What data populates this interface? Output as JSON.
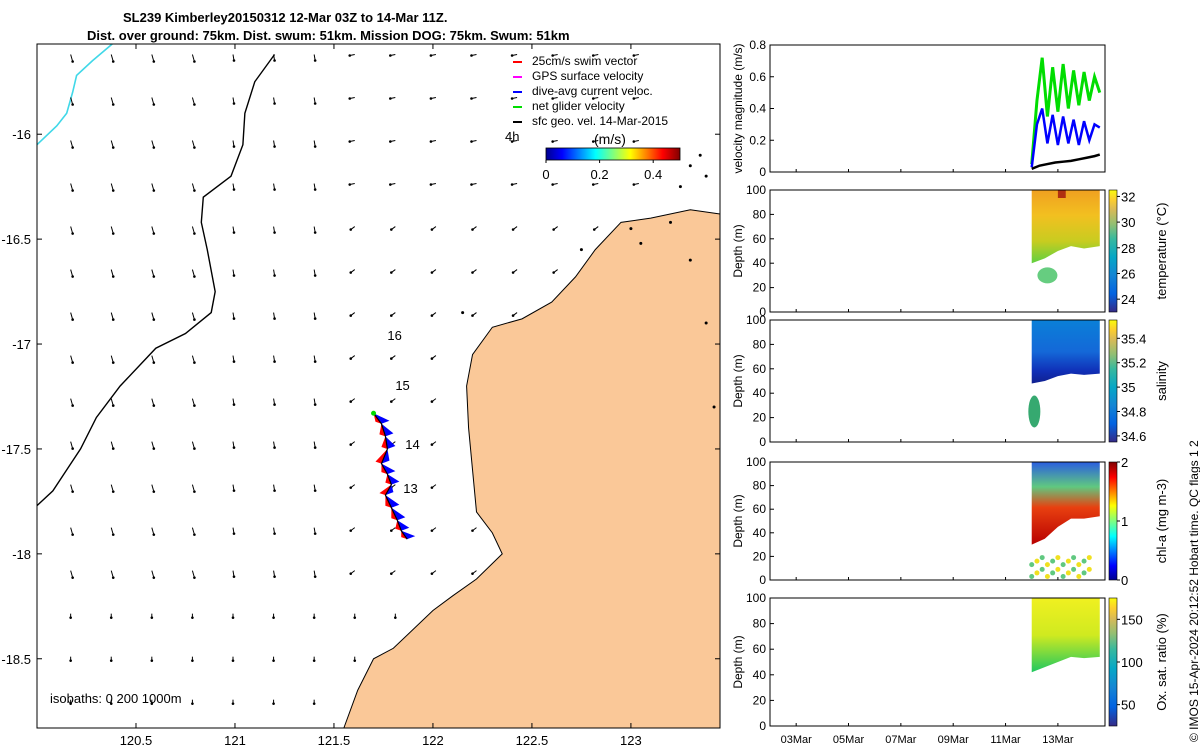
{
  "title": {
    "line1": "SL239 Kimberley20150312 12-Mar 03Z to 14-Mar 11Z.",
    "line2": "Dist. over ground: 75km. Dist. swum: 51km. Mission DOG: 75km. Swum: 51km"
  },
  "legend": {
    "items": [
      {
        "label": "25cm/s swim vector",
        "color": "#ff0000"
      },
      {
        "label": "GPS surface velocity",
        "color": "#ff00ff"
      },
      {
        "label": "dive-avg current veloc.",
        "color": "#0000ff"
      },
      {
        "label": "net glider velocity",
        "color": "#00dd00"
      },
      {
        "label": "sfc geo. vel. 14-Mar-2015",
        "color": "#000000"
      }
    ],
    "time_marker": "4h"
  },
  "colors": {
    "land": "#fac898",
    "isobath_200": "#000000",
    "isobath_1000": "#40d8e8",
    "glider_track": "#0000ff",
    "swim": "#ff0000"
  },
  "isobaths_label": "isobaths: 0   200  1000m",
  "side_caption": "© IMOS 15-Apr-2024 20:12:52 Hobart time. QC flags 1  2",
  "chart_data": [
    {
      "type": "map",
      "title": "SL239 Kimberley20150312 12-Mar 03Z to 14-Mar 11Z.",
      "xlim": [
        120.0,
        123.45
      ],
      "ylim": [
        -18.83,
        -15.57
      ],
      "x_ticks": [
        120.5,
        121,
        121.5,
        122,
        122.5,
        123
      ],
      "x_tick_labels": [
        "120.5",
        "121",
        "121.5",
        "122",
        "122.5",
        "123"
      ],
      "y_ticks": [
        -16,
        -16.5,
        -17,
        -17.5,
        -18,
        -18.5
      ],
      "y_tick_labels": [
        "-16",
        "-16.5",
        "-17",
        "-17.5",
        "-18",
        "-18.5"
      ],
      "colorbar": {
        "label": "(m/s)",
        "ticks": [
          0,
          0.2,
          0.4
        ],
        "tick_labels": [
          "0",
          "0.2",
          "0.4"
        ],
        "range": [
          0,
          0.5
        ]
      },
      "day_labels": [
        {
          "text": "16",
          "lon": 121.77,
          "lat": -16.98
        },
        {
          "text": "15",
          "lon": 121.81,
          "lat": -17.22
        },
        {
          "text": "14",
          "lon": 121.86,
          "lat": -17.5
        },
        {
          "text": "13",
          "lon": 121.85,
          "lat": -17.71
        }
      ],
      "glider_track": [
        [
          121.7,
          -17.33
        ],
        [
          121.74,
          -17.38
        ],
        [
          121.76,
          -17.44
        ],
        [
          121.77,
          -17.5
        ],
        [
          121.74,
          -17.57
        ],
        [
          121.77,
          -17.62
        ],
        [
          121.79,
          -17.67
        ],
        [
          121.76,
          -17.72
        ],
        [
          121.79,
          -17.78
        ],
        [
          121.82,
          -17.84
        ],
        [
          121.84,
          -17.89
        ],
        [
          121.87,
          -17.93
        ]
      ],
      "coastline": [
        [
          123.45,
          -16.38
        ],
        [
          123.3,
          -16.36
        ],
        [
          123.1,
          -16.4
        ],
        [
          122.95,
          -16.42
        ],
        [
          122.82,
          -16.55
        ],
        [
          122.72,
          -16.68
        ],
        [
          122.6,
          -16.8
        ],
        [
          122.45,
          -16.88
        ],
        [
          122.3,
          -16.92
        ],
        [
          122.2,
          -17.05
        ],
        [
          122.17,
          -17.2
        ],
        [
          122.18,
          -17.4
        ],
        [
          122.2,
          -17.6
        ],
        [
          122.22,
          -17.8
        ],
        [
          122.3,
          -17.9
        ],
        [
          122.35,
          -18.0
        ],
        [
          122.22,
          -18.12
        ],
        [
          122.1,
          -18.2
        ],
        [
          122.0,
          -18.27
        ],
        [
          121.8,
          -18.45
        ],
        [
          121.7,
          -18.5
        ],
        [
          121.62,
          -18.65
        ],
        [
          121.55,
          -18.83
        ]
      ],
      "isobath_200m": [
        [
          121.2,
          -15.62
        ],
        [
          121.1,
          -15.75
        ],
        [
          121.05,
          -15.9
        ],
        [
          121.04,
          -16.05
        ],
        [
          120.98,
          -16.2
        ],
        [
          120.84,
          -16.3
        ],
        [
          120.83,
          -16.42
        ],
        [
          120.86,
          -16.55
        ],
        [
          120.88,
          -16.65
        ],
        [
          120.9,
          -16.75
        ],
        [
          120.88,
          -16.85
        ],
        [
          120.75,
          -16.95
        ],
        [
          120.6,
          -17.02
        ],
        [
          120.42,
          -17.2
        ],
        [
          120.3,
          -17.35
        ],
        [
          120.22,
          -17.5
        ],
        [
          120.15,
          -17.6
        ],
        [
          120.08,
          -17.7
        ],
        [
          120.0,
          -17.77
        ]
      ],
      "isobath_1000m": [
        [
          120.38,
          -15.57
        ],
        [
          120.28,
          -15.65
        ],
        [
          120.2,
          -15.72
        ],
        [
          120.18,
          -15.8
        ],
        [
          120.15,
          -15.9
        ],
        [
          120.1,
          -15.96
        ],
        [
          120.0,
          -16.05
        ]
      ],
      "surface_current_vectors": "grid of small black arrows, sfc geo. vel. 14-Mar-2015, mostly pointing S to SW, ~0.05-0.15 m/s"
    },
    {
      "type": "line",
      "ylabel": "velocity magnitude (m/s)",
      "ylim": [
        0,
        0.8
      ],
      "y_ticks": [
        0,
        0.2,
        0.4,
        0.6,
        0.8
      ],
      "x_ticks_days": [
        3,
        5,
        7,
        9,
        11,
        13
      ],
      "series": [
        {
          "name": "net glider velocity",
          "color": "#00dd00",
          "x": [
            12.0,
            12.2,
            12.4,
            12.6,
            12.8,
            13.0,
            13.2,
            13.4,
            13.6,
            13.8,
            14.0,
            14.2,
            14.4,
            14.6
          ],
          "y": [
            0.05,
            0.45,
            0.72,
            0.35,
            0.66,
            0.38,
            0.68,
            0.4,
            0.64,
            0.42,
            0.63,
            0.45,
            0.6,
            0.5
          ]
        },
        {
          "name": "dive-avg current veloc.",
          "color": "#0000ff",
          "x": [
            12.0,
            12.2,
            12.4,
            12.6,
            12.8,
            13.0,
            13.2,
            13.4,
            13.6,
            13.8,
            14.0,
            14.2,
            14.4,
            14.6
          ],
          "y": [
            0.03,
            0.3,
            0.4,
            0.18,
            0.36,
            0.17,
            0.35,
            0.18,
            0.33,
            0.17,
            0.32,
            0.2,
            0.3,
            0.28
          ]
        },
        {
          "name": "sfc geo. vel.",
          "color": "#000000",
          "x": [
            12.0,
            12.3,
            12.6,
            12.9,
            13.2,
            13.5,
            13.8,
            14.1,
            14.4,
            14.6
          ],
          "y": [
            0.02,
            0.04,
            0.05,
            0.06,
            0.065,
            0.07,
            0.08,
            0.09,
            0.1,
            0.11
          ]
        }
      ]
    },
    {
      "type": "heatmap",
      "ylabel": "Depth (m)",
      "colorbar_label": "temperature (°C)",
      "ylim": [
        100,
        0
      ],
      "y_ticks": [
        0,
        20,
        40,
        60,
        80,
        100
      ],
      "colorbar_ticks": [
        24,
        26,
        28,
        30,
        32
      ],
      "crange": [
        23,
        32.5
      ],
      "x_range_days": [
        12.0,
        14.6
      ],
      "profile": {
        "x": [
          12.0,
          12.5,
          13.0,
          13.5,
          14.0,
          14.6
        ],
        "bottom": [
          40,
          44,
          50,
          54,
          52,
          54
        ]
      },
      "layers": [
        {
          "depth": 0,
          "value": 31
        },
        {
          "depth": 20,
          "value": 30.5
        },
        {
          "depth": 35,
          "value": 28.8
        },
        {
          "depth": 50,
          "value": 26.8
        }
      ]
    },
    {
      "type": "heatmap",
      "ylabel": "Depth (m)",
      "colorbar_label": "salinity",
      "ylim": [
        100,
        0
      ],
      "y_ticks": [
        0,
        20,
        40,
        60,
        80,
        100
      ],
      "colorbar_ticks": [
        34.6,
        34.8,
        35,
        35.2,
        35.4
      ],
      "colorbar_tick_labels": [
        "34.6",
        "34.8",
        "35",
        "35.2",
        "35.4"
      ],
      "crange": [
        34.55,
        35.55
      ],
      "x_range_days": [
        12.0,
        14.6
      ],
      "profile": {
        "x": [
          12.0,
          12.5,
          13.0,
          13.5,
          14.0,
          14.6
        ],
        "bottom": [
          48,
          50,
          54,
          56,
          55,
          56
        ]
      },
      "layers": [
        {
          "depth": 0,
          "value": 34.8
        },
        {
          "depth": 20,
          "value": 34.85
        },
        {
          "depth": 35,
          "value": 34.75
        },
        {
          "depth": 48,
          "value": 34.62
        }
      ]
    },
    {
      "type": "heatmap",
      "ylabel": "Depth (m)",
      "colorbar_label": "chl-a (mg m-3)",
      "ylim": [
        100,
        0
      ],
      "y_ticks": [
        0,
        20,
        40,
        60,
        80,
        100
      ],
      "colorbar_ticks": [
        0,
        1,
        2
      ],
      "crange": [
        0,
        2
      ],
      "x_range_days": [
        12.0,
        14.6
      ],
      "profile": {
        "x": [
          12.0,
          12.5,
          13.0,
          13.5,
          14.0,
          14.6
        ],
        "bottom": [
          30,
          35,
          45,
          52,
          52,
          54
        ]
      },
      "layers": [
        {
          "depth": 0,
          "value": 0.3
        },
        {
          "depth": 15,
          "value": 0.9
        },
        {
          "depth": 25,
          "value": 1.8
        },
        {
          "depth": 40,
          "value": 1.2
        }
      ]
    },
    {
      "type": "heatmap",
      "ylabel": "Depth (m)",
      "colorbar_label": "Ox. sat. ratio (%)",
      "ylim": [
        100,
        0
      ],
      "y_ticks": [
        0,
        20,
        40,
        60,
        80,
        100
      ],
      "colorbar_ticks": [
        50,
        100,
        150
      ],
      "crange": [
        25,
        175
      ],
      "x_range_days": [
        12.0,
        14.6
      ],
      "profile": {
        "x": [
          12.0,
          12.5,
          13.0,
          13.5,
          14.0,
          14.6
        ],
        "bottom": [
          42,
          46,
          50,
          54,
          53,
          54
        ]
      },
      "layers": [
        {
          "depth": 0,
          "value": 135
        },
        {
          "depth": 25,
          "value": 128
        },
        {
          "depth": 40,
          "value": 105
        }
      ]
    }
  ],
  "x_tick_labels_time": [
    "03Mar",
    "05Mar",
    "07Mar",
    "09Mar",
    "11Mar",
    "13Mar"
  ]
}
